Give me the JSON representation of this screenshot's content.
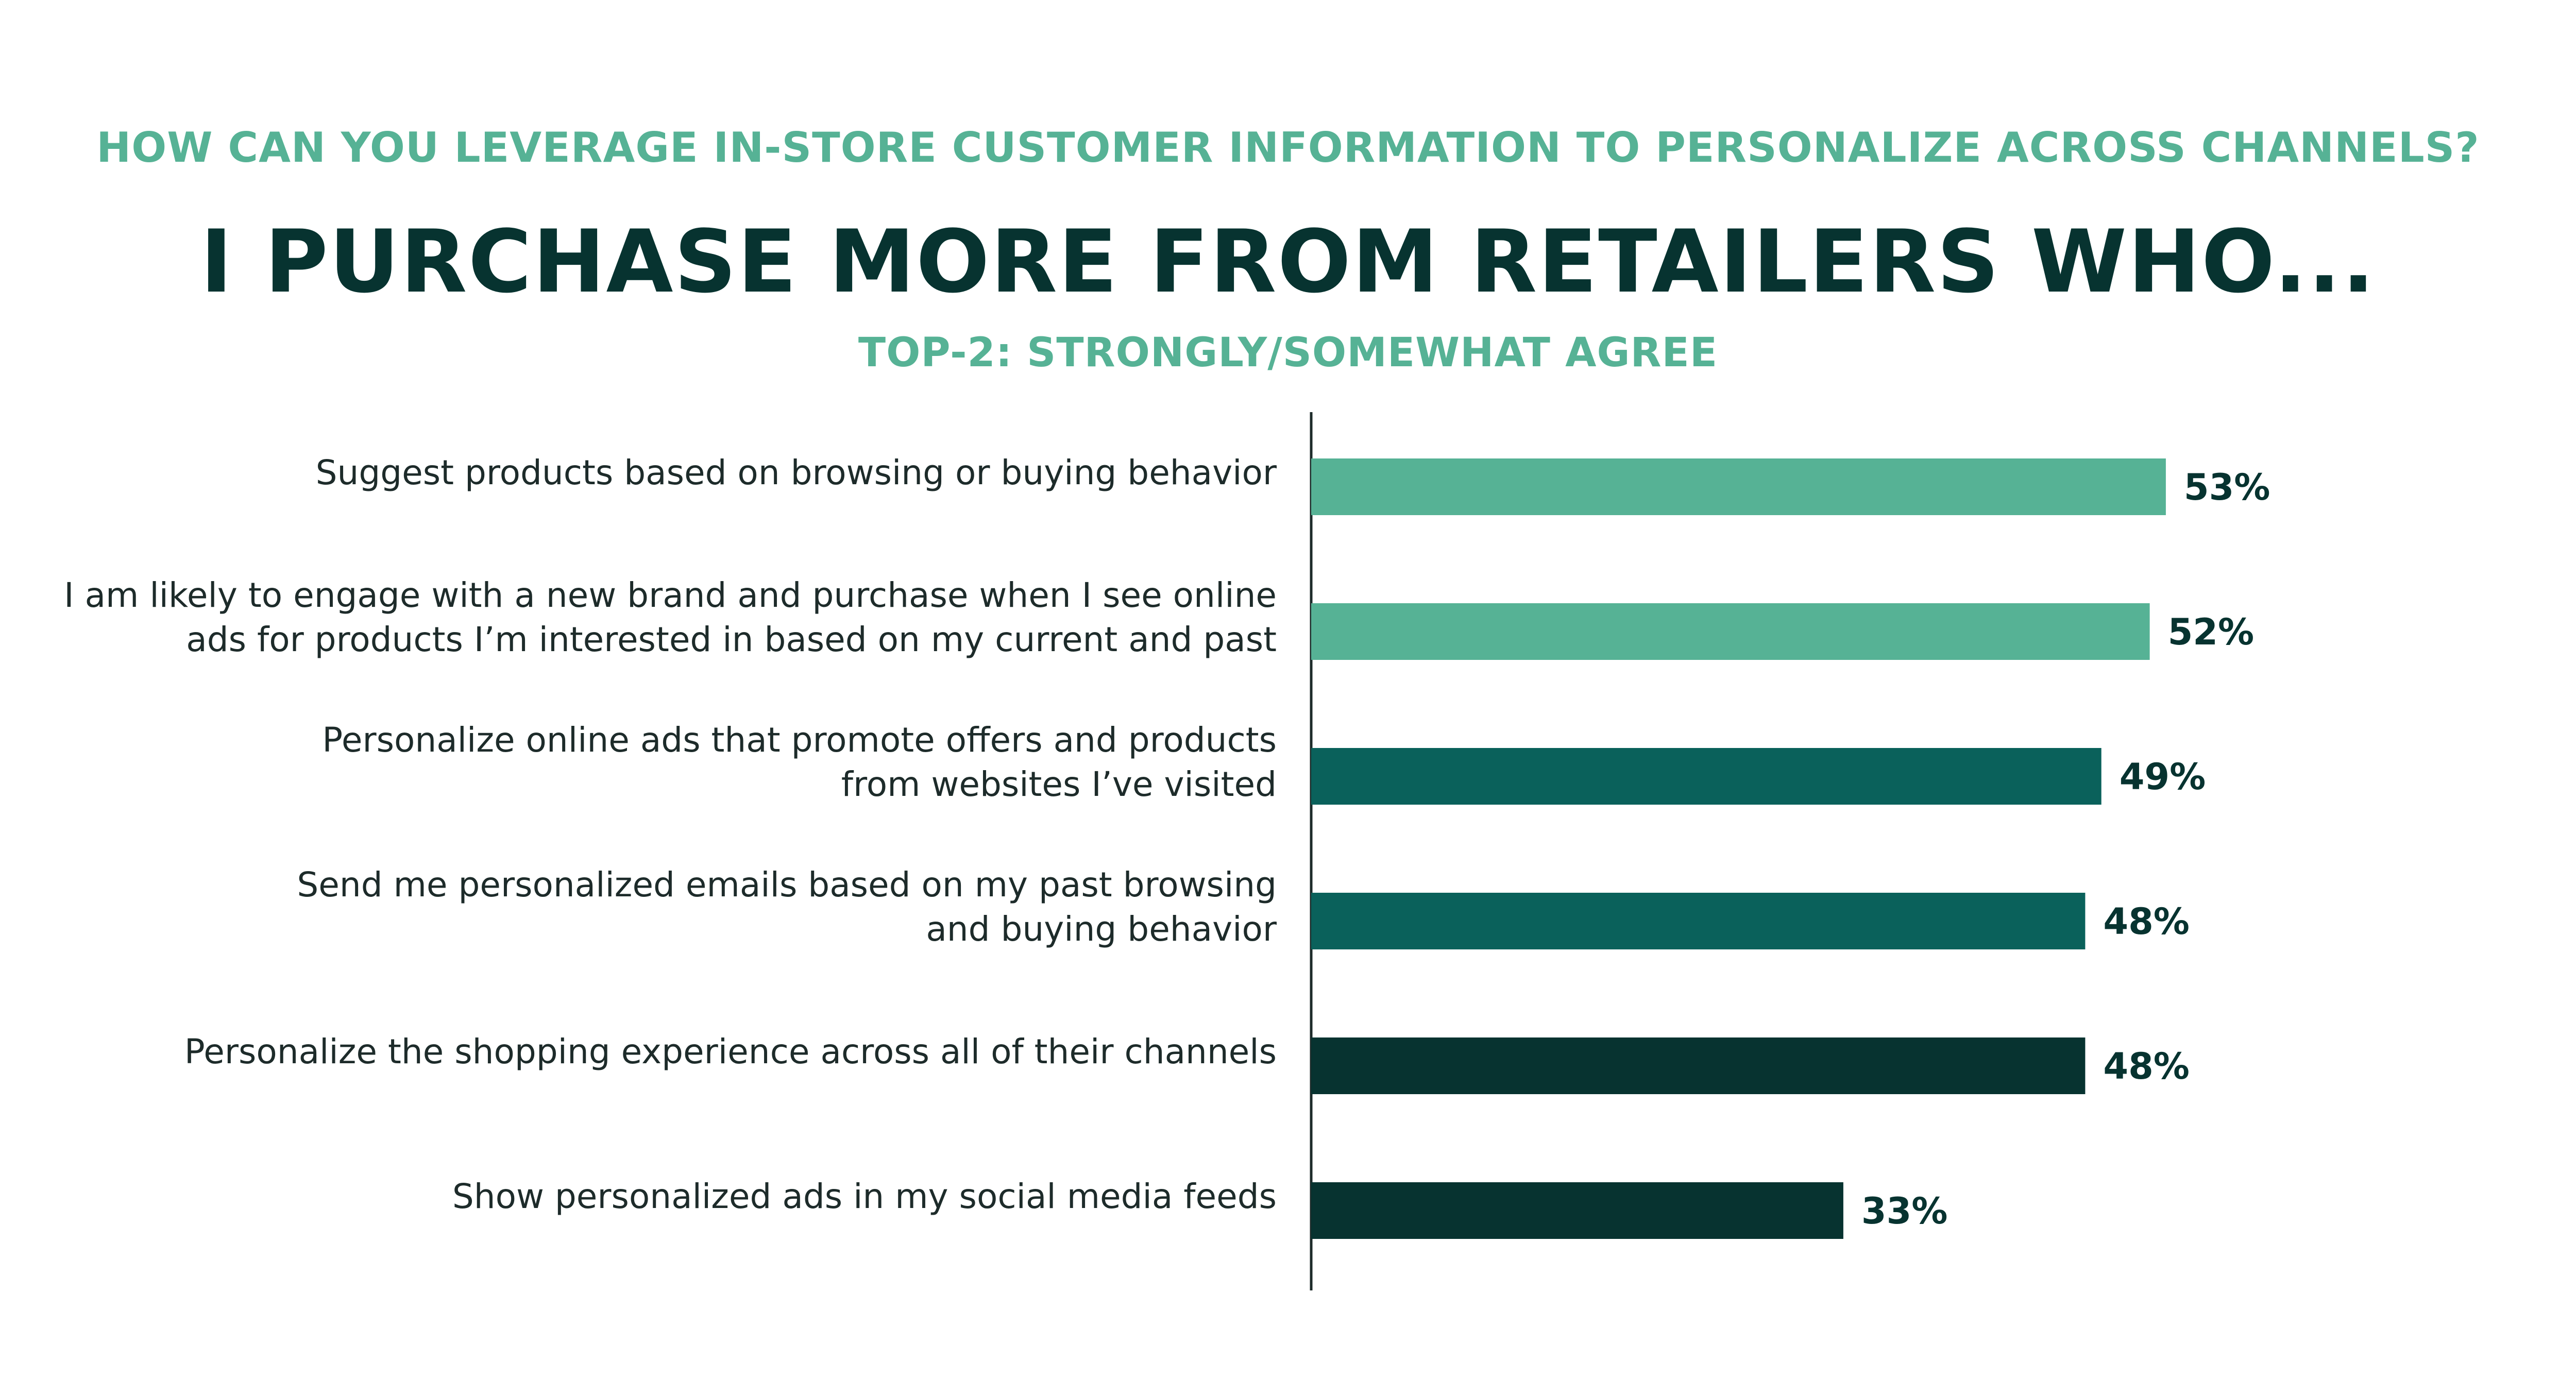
{
  "header": {
    "kicker": "HOW CAN YOU LEVERAGE IN-STORE CUSTOMER INFORMATION TO PERSONALIZE ACROSS CHANNELS?",
    "headline": "I PURCHASE MORE FROM RETAILERS WHO...",
    "subtitle": "TOP-2: STRONGLY/SOMEWHAT AGREE"
  },
  "chart_data": {
    "type": "bar",
    "orientation": "horizontal",
    "title": "I PURCHASE MORE FROM RETAILERS WHO...",
    "subtitle": "TOP-2: STRONGLY/SOMEWHAT AGREE",
    "categories": [
      [
        "Suggest products based on browsing or buying behavior"
      ],
      [
        "I am likely to engage with a new brand and purchase when I see online",
        "ads for products I’m interested in based on my current and past"
      ],
      [
        "Personalize online ads that promote offers and products",
        "from websites I’ve visited"
      ],
      [
        "Send me personalized emails based on my past browsing",
        "and buying behavior"
      ],
      [
        "Personalize the shopping experience across all of their channels"
      ],
      [
        "Show personalized ads in my social media feeds"
      ]
    ],
    "values": [
      53,
      52,
      49,
      48,
      48,
      33
    ],
    "value_labels": [
      "53%",
      "52%",
      "49%",
      "48%",
      "48%",
      "33%"
    ],
    "bar_colors": [
      "#56b295",
      "#56b295",
      "#0a615b",
      "#0a615b",
      "#073330",
      "#073330"
    ],
    "unit": "%",
    "grid": false,
    "legend": "none"
  }
}
